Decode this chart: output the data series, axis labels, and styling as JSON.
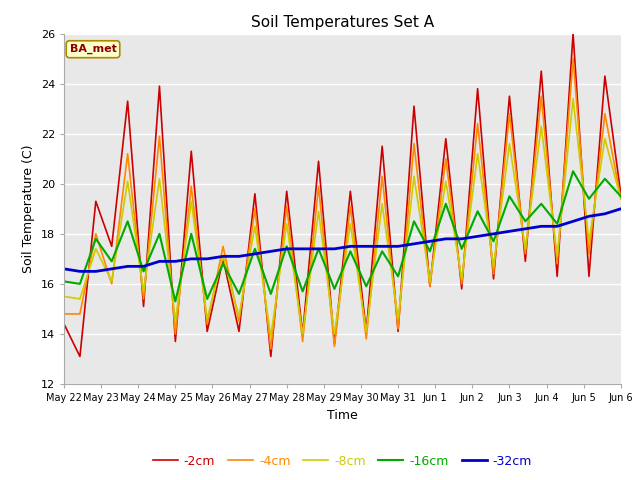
{
  "title": "Soil Temperatures Set A",
  "xlabel": "Time",
  "ylabel": "Soil Temperature (C)",
  "ylim": [
    12,
    26
  ],
  "yticks": [
    12,
    14,
    16,
    18,
    20,
    22,
    24,
    26
  ],
  "x_labels": [
    "May 22",
    "May 23",
    "May 24",
    "May 25",
    "May 26",
    "May 27",
    "May 28",
    "May 29",
    "May 30",
    "May 31",
    "Jun 1",
    "Jun 2",
    "Jun 3",
    "Jun 4",
    "Jun 5",
    "Jun 6"
  ],
  "legend_labels": [
    "-2cm",
    "-4cm",
    "-8cm",
    "-16cm",
    "-32cm"
  ],
  "legend_colors": [
    "#cc0000",
    "#ff8800",
    "#cccc00",
    "#00aa00",
    "#0000cc"
  ],
  "line_widths": [
    1.2,
    1.2,
    1.2,
    1.5,
    2.0
  ],
  "station_label": "BA_met",
  "background_color": "#ffffff",
  "plot_bg_color": "#e8e8e8",
  "grid_color": "#ffffff",
  "series_2cm": [
    14.4,
    13.1,
    19.3,
    17.5,
    23.3,
    15.1,
    23.9,
    13.7,
    21.3,
    14.1,
    17.0,
    14.1,
    19.6,
    13.1,
    19.7,
    14.0,
    20.9,
    13.6,
    19.7,
    14.1,
    21.5,
    14.1,
    23.1,
    15.9,
    21.8,
    15.8,
    23.8,
    16.2,
    23.5,
    16.9,
    24.5,
    16.3,
    26.0,
    16.3,
    24.3,
    19.6
  ],
  "series_4cm": [
    14.8,
    14.8,
    18.0,
    16.0,
    21.2,
    15.4,
    21.9,
    14.0,
    19.9,
    14.4,
    17.5,
    14.5,
    19.0,
    13.4,
    19.1,
    13.7,
    19.9,
    13.5,
    19.1,
    13.8,
    20.3,
    14.2,
    21.6,
    15.9,
    21.0,
    16.0,
    22.4,
    16.4,
    22.8,
    17.2,
    23.5,
    16.8,
    25.0,
    17.2,
    22.8,
    19.4
  ],
  "series_8cm": [
    15.5,
    15.4,
    17.4,
    16.1,
    20.1,
    15.7,
    20.2,
    14.5,
    19.3,
    14.6,
    17.1,
    14.7,
    18.3,
    13.9,
    18.4,
    14.0,
    18.9,
    14.0,
    18.4,
    14.1,
    19.2,
    14.6,
    20.3,
    16.1,
    20.1,
    16.2,
    21.2,
    16.7,
    21.6,
    17.4,
    22.3,
    17.1,
    23.4,
    17.7,
    21.8,
    19.4
  ],
  "series_16cm": [
    16.1,
    16.0,
    17.8,
    16.9,
    18.5,
    16.5,
    18.0,
    15.3,
    18.0,
    15.4,
    16.8,
    15.6,
    17.4,
    15.6,
    17.5,
    15.7,
    17.4,
    15.8,
    17.3,
    15.9,
    17.3,
    16.3,
    18.5,
    17.3,
    19.2,
    17.4,
    18.9,
    17.7,
    19.5,
    18.5,
    19.2,
    18.4,
    20.5,
    19.4,
    20.2,
    19.5
  ],
  "series_32cm": [
    16.6,
    16.5,
    16.5,
    16.6,
    16.7,
    16.7,
    16.9,
    16.9,
    17.0,
    17.0,
    17.1,
    17.1,
    17.2,
    17.3,
    17.4,
    17.4,
    17.4,
    17.4,
    17.5,
    17.5,
    17.5,
    17.5,
    17.6,
    17.7,
    17.8,
    17.8,
    17.9,
    18.0,
    18.1,
    18.2,
    18.3,
    18.3,
    18.5,
    18.7,
    18.8,
    19.0
  ]
}
